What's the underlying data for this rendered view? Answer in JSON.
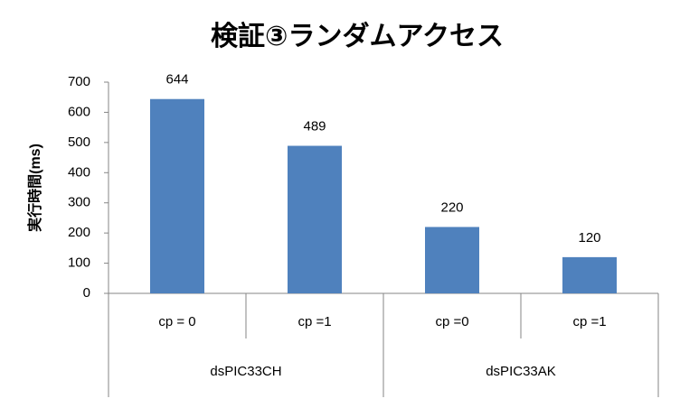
{
  "chart_data": {
    "type": "bar",
    "title": "検証③ランダムアクセス",
    "y_label": "実行時間(ms)",
    "categories": [
      "cp = 0",
      "cp =1",
      "cp =0",
      "cp =1"
    ],
    "groups": [
      "dsPIC33CH",
      "dsPIC33AK"
    ],
    "values": [
      644,
      489,
      220,
      120
    ],
    "color": "#4f81bd",
    "ylim": [
      0,
      700
    ],
    "yticks": [
      0,
      100,
      200,
      300,
      400,
      500,
      600,
      700
    ],
    "grid": false
  }
}
